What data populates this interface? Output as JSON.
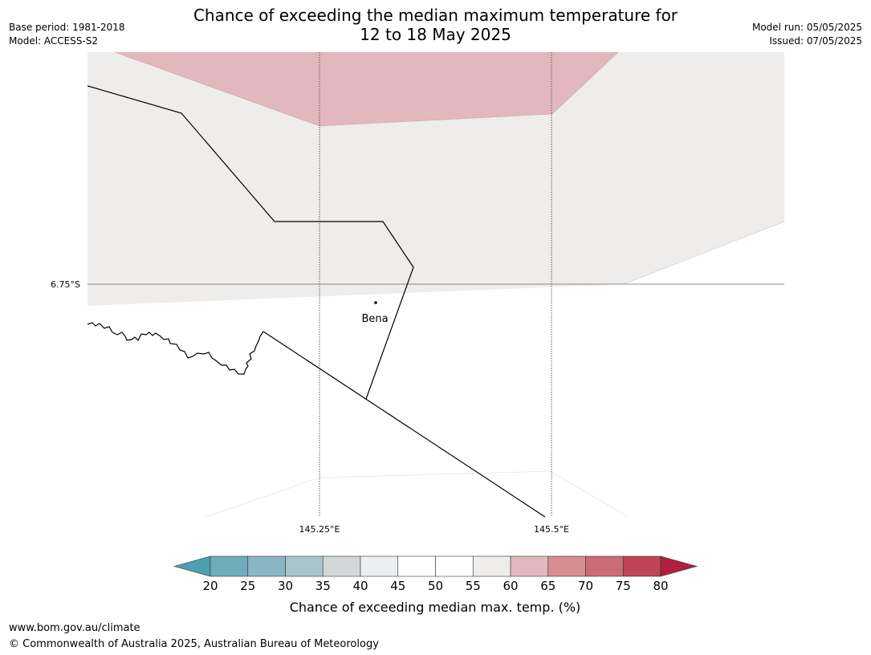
{
  "title": {
    "line1": "Chance of exceeding the median maximum temperature for",
    "line2": "12 to 18 May 2025"
  },
  "meta_left": {
    "base_period": "Base period: 1981-2018",
    "model": "Model: ACCESS-S2"
  },
  "meta_right": {
    "model_run": "Model run: 05/05/2025",
    "issued": "Issued: 07/05/2025"
  },
  "map": {
    "lat_labels": [
      "6.75°S"
    ],
    "lon_labels": [
      "145.25°E",
      "145.5°E"
    ],
    "places": [
      {
        "name": "Bena"
      }
    ]
  },
  "colorbar": {
    "label": "Chance of exceeding median max. temp. (%)",
    "ticks": [
      "20",
      "25",
      "30",
      "35",
      "40",
      "45",
      "50",
      "55",
      "60",
      "65",
      "70",
      "75",
      "80"
    ],
    "colors": [
      "#4a9fb0",
      "#6eacbc",
      "#8ab6c4",
      "#a8c5cc",
      "#d2d7d8",
      "#eaeff2",
      "#ffffff",
      "#ffffff",
      "#efedeb",
      "#e2b8be",
      "#d88c94",
      "#cb6b76",
      "#bf4456",
      "#b01f3d"
    ]
  },
  "footer": {
    "url": "www.bom.gov.au/climate",
    "copyright": "© Commonwealth of Australia 2025, Australian Bureau of Meteorology"
  }
}
